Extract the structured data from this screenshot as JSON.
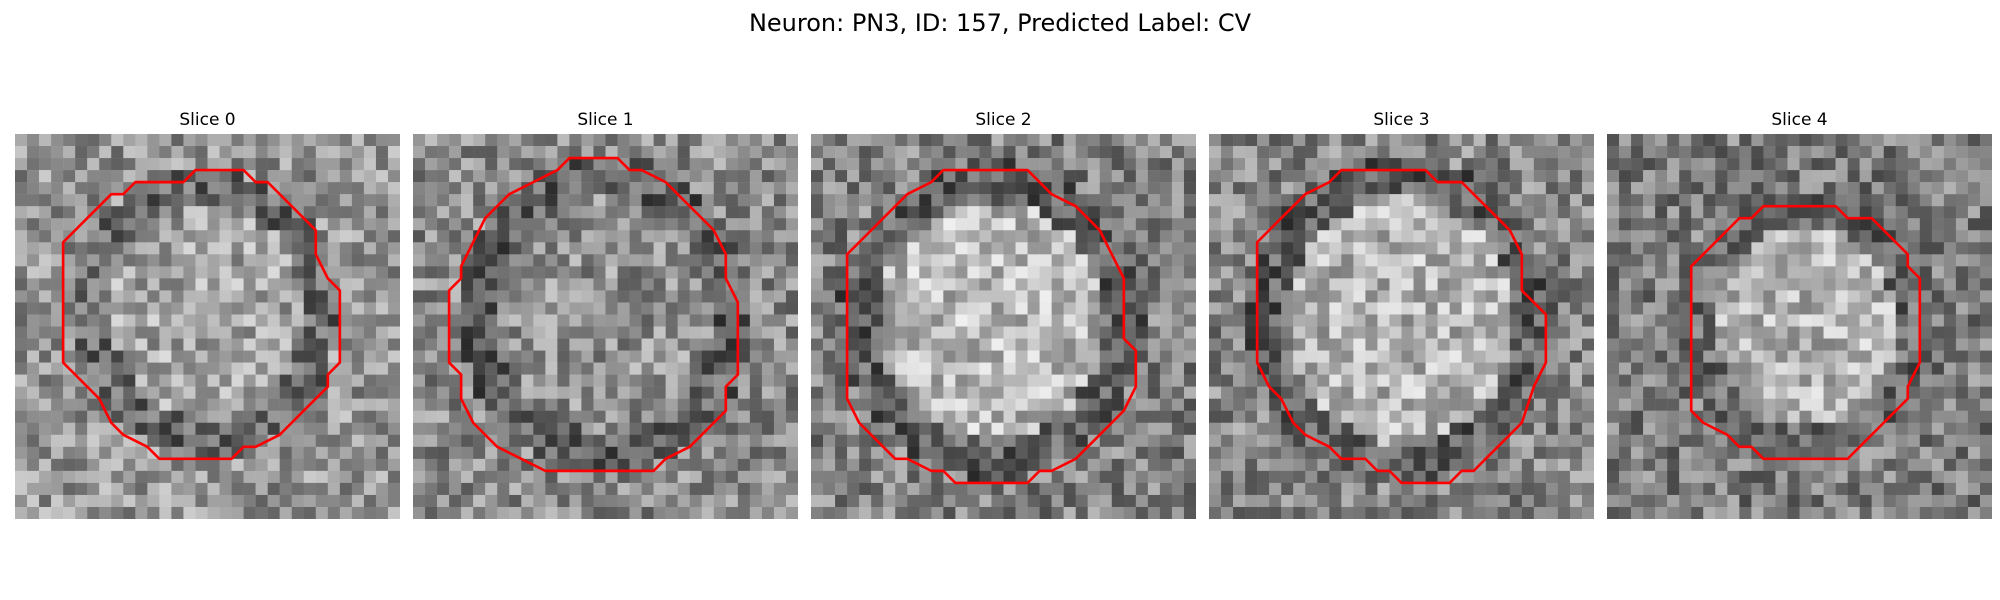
{
  "figure": {
    "title": "Neuron: PN3, ID: 157, Predicted Label: CV",
    "contour_color": "#ff0000",
    "panels": [
      {
        "title": "Slice 0"
      },
      {
        "title": "Slice 1"
      },
      {
        "title": "Slice 2"
      },
      {
        "title": "Slice 3"
      },
      {
        "title": "Slice 4"
      }
    ]
  }
}
